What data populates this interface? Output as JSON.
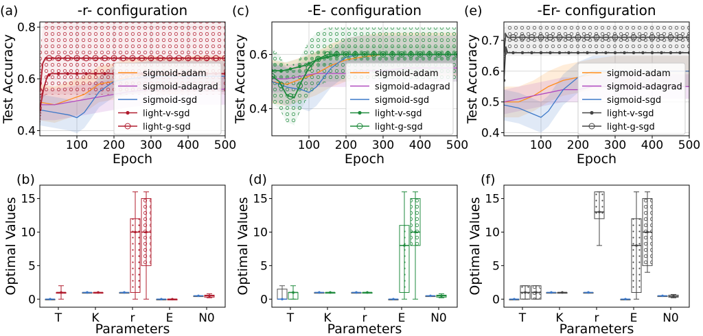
{
  "colors": {
    "sigmoid_adam": "#ff8c1a",
    "sigmoid_adagrad": "#b04ac0",
    "sigmoid_sgd": "#3c78c8",
    "r_config": "#b01c2e",
    "E_config": "#1e8a3c",
    "Er_config": "#444444",
    "grid": "#d9d9d9"
  },
  "legend_labels": [
    "sigmoid-adam",
    "sigmoid-adagrad",
    "sigmoid-sgd",
    "light-v-sgd",
    "light-g-sgd"
  ],
  "chart_data": [
    {
      "panel": "(a)",
      "type": "line",
      "title": "-r- configuration",
      "xlabel": "Epoch",
      "ylabel": "Test Accuracy",
      "xlim": [
        0,
        500
      ],
      "ylim": [
        0.38,
        0.82
      ],
      "xticks": [
        100,
        200,
        300,
        400,
        500
      ],
      "yticks": [
        0.4,
        0.6,
        0.8
      ],
      "ytick_labels": [
        "0.4",
        "0.6",
        "0.8"
      ],
      "legend": "right",
      "accent": "r_config",
      "series": [
        {
          "name": "sigmoid-adam",
          "color_key": "sigmoid_adam",
          "x": [
            0,
            40,
            80,
            120,
            160,
            200,
            240,
            300,
            360,
            420,
            500
          ],
          "y": [
            0.51,
            0.5,
            0.52,
            0.54,
            0.58,
            0.59,
            0.61,
            0.62,
            0.61,
            0.62,
            0.62
          ],
          "band": 0.07
        },
        {
          "name": "sigmoid-adagrad",
          "color_key": "sigmoid_adagrad",
          "x": [
            0,
            40,
            80,
            120,
            160,
            200,
            240,
            300,
            360,
            420,
            500
          ],
          "y": [
            0.5,
            0.5,
            0.51,
            0.52,
            0.53,
            0.54,
            0.55,
            0.56,
            0.56,
            0.56,
            0.56
          ],
          "band": 0.06
        },
        {
          "name": "sigmoid-sgd",
          "color_key": "sigmoid_sgd",
          "x": [
            0,
            40,
            80,
            100,
            120,
            160,
            200,
            240,
            300,
            360,
            420,
            500
          ],
          "y": [
            0.48,
            0.47,
            0.46,
            0.45,
            0.47,
            0.55,
            0.59,
            0.6,
            0.61,
            0.61,
            0.61,
            0.61
          ],
          "band": 0.06
        },
        {
          "name": "light-v-sgd",
          "color_key": "r_config",
          "marker": "dot",
          "x": [
            0,
            10,
            20,
            30,
            40,
            50,
            60,
            80,
            100,
            200,
            300,
            400,
            500
          ],
          "y": [
            0.48,
            0.56,
            0.61,
            0.62,
            0.62,
            0.62,
            0.62,
            0.62,
            0.62,
            0.62,
            0.62,
            0.62,
            0.62
          ],
          "band": 0.0
        },
        {
          "name": "light-g-sgd",
          "color_key": "r_config",
          "marker": "ring",
          "x": [
            0,
            8,
            15,
            25,
            40,
            60,
            100,
            200,
            300,
            400,
            500
          ],
          "y": [
            0.55,
            0.66,
            0.68,
            0.68,
            0.68,
            0.68,
            0.68,
            0.68,
            0.68,
            0.68,
            0.68
          ],
          "band": 0.14
        }
      ]
    },
    {
      "panel": "(c)",
      "type": "line",
      "title": "-E- configuration",
      "xlabel": "Epoch",
      "ylabel": "Test Accuracy",
      "xlim": [
        0,
        500
      ],
      "ylim": [
        0.3,
        0.72
      ],
      "xticks": [
        100,
        200,
        300,
        400,
        500
      ],
      "yticks": [
        0.4,
        0.6
      ],
      "ytick_labels": [
        "0.4",
        "0.6"
      ],
      "legend": "right",
      "accent": "E_config",
      "series": [
        {
          "name": "sigmoid-adam",
          "color_key": "sigmoid_adam",
          "x": [
            0,
            40,
            80,
            120,
            160,
            200,
            240,
            300,
            360,
            420,
            500
          ],
          "y": [
            0.5,
            0.49,
            0.51,
            0.53,
            0.56,
            0.58,
            0.59,
            0.6,
            0.6,
            0.6,
            0.6
          ],
          "band": 0.08
        },
        {
          "name": "sigmoid-adagrad",
          "color_key": "sigmoid_adagrad",
          "x": [
            0,
            40,
            80,
            120,
            160,
            200,
            240,
            300,
            360,
            420,
            500
          ],
          "y": [
            0.51,
            0.51,
            0.52,
            0.53,
            0.53,
            0.53,
            0.54,
            0.54,
            0.55,
            0.55,
            0.55
          ],
          "band": 0.05
        },
        {
          "name": "sigmoid-sgd",
          "color_key": "sigmoid_sgd",
          "x": [
            0,
            40,
            80,
            100,
            120,
            160,
            200,
            240,
            300,
            360,
            420,
            500
          ],
          "y": [
            0.5,
            0.48,
            0.47,
            0.46,
            0.48,
            0.55,
            0.59,
            0.6,
            0.6,
            0.6,
            0.6,
            0.6
          ],
          "band": 0.07
        },
        {
          "name": "light-v-sgd",
          "color_key": "E_config",
          "marker": "dot",
          "x": [
            0,
            30,
            60,
            90,
            120,
            150,
            180,
            200,
            250,
            300,
            350,
            400,
            450,
            500
          ],
          "y": [
            0.54,
            0.54,
            0.55,
            0.56,
            0.58,
            0.59,
            0.6,
            0.6,
            0.6,
            0.6,
            0.6,
            0.6,
            0.6,
            0.6
          ],
          "band": 0.03
        },
        {
          "name": "light-g-sgd",
          "color_key": "E_config",
          "marker": "ring",
          "x": [
            0,
            20,
            40,
            60,
            80,
            100,
            120,
            150,
            180,
            200,
            250,
            300,
            350,
            400,
            450,
            500
          ],
          "y": [
            0.52,
            0.5,
            0.45,
            0.44,
            0.5,
            0.55,
            0.58,
            0.6,
            0.6,
            0.6,
            0.6,
            0.6,
            0.6,
            0.6,
            0.6,
            0.6
          ],
          "band": 0.1
        }
      ]
    },
    {
      "panel": "(e)",
      "type": "line",
      "title": "-Er- configuration",
      "xlabel": "Epoch",
      "ylabel": "Test Accuracy",
      "xlim": [
        0,
        500
      ],
      "ylim": [
        0.39,
        0.76
      ],
      "xticks": [
        100,
        200,
        300,
        400,
        500
      ],
      "yticks": [
        0.4,
        0.5,
        0.6,
        0.7
      ],
      "ytick_labels": [
        "0.4",
        "0.5",
        "0.6",
        "0.7"
      ],
      "legend": "right",
      "accent": "Er_config",
      "series": [
        {
          "name": "sigmoid-adam",
          "color_key": "sigmoid_adam",
          "x": [
            0,
            40,
            80,
            120,
            160,
            200,
            240,
            300,
            360,
            420,
            500
          ],
          "y": [
            0.5,
            0.5,
            0.52,
            0.55,
            0.57,
            0.58,
            0.59,
            0.6,
            0.6,
            0.6,
            0.6
          ],
          "band": 0.05
        },
        {
          "name": "sigmoid-adagrad",
          "color_key": "sigmoid_adagrad",
          "x": [
            0,
            40,
            80,
            120,
            160,
            200,
            240,
            300,
            360,
            420,
            500
          ],
          "y": [
            0.5,
            0.51,
            0.52,
            0.53,
            0.54,
            0.54,
            0.55,
            0.55,
            0.55,
            0.55,
            0.55
          ],
          "band": 0.04
        },
        {
          "name": "sigmoid-sgd",
          "color_key": "sigmoid_sgd",
          "x": [
            0,
            40,
            80,
            100,
            120,
            160,
            200,
            240,
            300,
            360,
            420,
            500
          ],
          "y": [
            0.49,
            0.48,
            0.46,
            0.45,
            0.47,
            0.54,
            0.58,
            0.6,
            0.6,
            0.6,
            0.6,
            0.6
          ],
          "band": 0.05
        },
        {
          "name": "light-v-sgd",
          "color_key": "Er_config",
          "marker": "dot",
          "x": [
            0,
            5,
            10,
            20,
            40,
            60,
            100,
            200,
            300,
            400,
            500
          ],
          "y": [
            0.57,
            0.68,
            0.66,
            0.66,
            0.66,
            0.66,
            0.66,
            0.66,
            0.66,
            0.66,
            0.66
          ],
          "band": 0.01
        },
        {
          "name": "light-g-sgd",
          "color_key": "Er_config",
          "marker": "ring",
          "x": [
            0,
            5,
            10,
            20,
            40,
            60,
            100,
            200,
            300,
            400,
            500
          ],
          "y": [
            0.66,
            0.72,
            0.71,
            0.71,
            0.71,
            0.71,
            0.71,
            0.71,
            0.71,
            0.71,
            0.71
          ],
          "band": 0.04
        }
      ]
    },
    {
      "panel": "(b)",
      "type": "box",
      "xlabel": "Parameters",
      "ylabel": "Optimal Values",
      "ylim": [
        -1.2,
        17
      ],
      "yticks": [
        0,
        5,
        10,
        15
      ],
      "ytick_labels": [
        "0",
        "5",
        "10",
        "15"
      ],
      "categories": [
        "T",
        "K",
        "r",
        "E",
        "N0"
      ],
      "accent": "r_config",
      "boxes": [
        {
          "category": "T",
          "group": "v",
          "min": 0,
          "q1": 0,
          "median": 0,
          "q3": 0,
          "max": 0
        },
        {
          "category": "T",
          "group": "g",
          "min": 0,
          "q1": 1,
          "median": 1,
          "q3": 1,
          "max": 2
        },
        {
          "category": "K",
          "group": "v",
          "min": 1,
          "q1": 1,
          "median": 1,
          "q3": 1,
          "max": 1
        },
        {
          "category": "K",
          "group": "g",
          "min": 1,
          "q1": 1,
          "median": 1,
          "q3": 1,
          "max": 1
        },
        {
          "category": "r",
          "group": "v",
          "min": 1,
          "q1": 1,
          "median": 1,
          "q3": 1,
          "max": 1
        },
        {
          "category": "r",
          "group": "g",
          "min": 0,
          "q1": 1,
          "median": 10,
          "q3": 12,
          "max": 16
        },
        {
          "category": "r",
          "group": "g2",
          "min": 0,
          "q1": 5,
          "median": 10,
          "q3": 15,
          "max": 16
        },
        {
          "category": "E",
          "group": "v",
          "min": 0,
          "q1": 0,
          "median": 0,
          "q3": 0,
          "max": 0
        },
        {
          "category": "E",
          "group": "g",
          "min": 0,
          "q1": 0,
          "median": 0,
          "q3": 0,
          "max": 0
        },
        {
          "category": "N0",
          "group": "v",
          "min": 0.5,
          "q1": 0.5,
          "median": 0.5,
          "q3": 0.5,
          "max": 0.5
        },
        {
          "category": "N0",
          "group": "g",
          "min": 0.2,
          "q1": 0.3,
          "median": 0.5,
          "q3": 0.6,
          "max": 0.8
        }
      ]
    },
    {
      "panel": "(d)",
      "type": "box",
      "xlabel": "Parameters",
      "ylabel": "Optimal Values",
      "ylim": [
        -1.2,
        17
      ],
      "yticks": [
        0,
        5,
        10,
        15
      ],
      "ytick_labels": [
        "0",
        "5",
        "10",
        "15"
      ],
      "categories": [
        "T",
        "K",
        "r",
        "E",
        "N0"
      ],
      "accent": "E_config",
      "boxes": [
        {
          "category": "T",
          "group": "v",
          "min": 0,
          "q1": 0,
          "median": 0,
          "q3": 1.5,
          "max": 2
        },
        {
          "category": "T",
          "group": "g",
          "min": 0,
          "q1": 0,
          "median": 1,
          "q3": 1,
          "max": 2
        },
        {
          "category": "K",
          "group": "v",
          "min": 1,
          "q1": 1,
          "median": 1,
          "q3": 1,
          "max": 1
        },
        {
          "category": "K",
          "group": "g",
          "min": 1,
          "q1": 1,
          "median": 1,
          "q3": 1,
          "max": 1
        },
        {
          "category": "r",
          "group": "v",
          "min": 1,
          "q1": 1,
          "median": 1,
          "q3": 1,
          "max": 1
        },
        {
          "category": "r",
          "group": "g",
          "min": 1,
          "q1": 1,
          "median": 1,
          "q3": 1,
          "max": 1
        },
        {
          "category": "E",
          "group": "v",
          "min": 0,
          "q1": 0,
          "median": 0,
          "q3": 0,
          "max": 0
        },
        {
          "category": "E",
          "group": "g",
          "min": 0,
          "q1": 1,
          "median": 8,
          "q3": 11,
          "max": 16
        },
        {
          "category": "E",
          "group": "g2",
          "min": 0,
          "q1": 8,
          "median": 10,
          "q3": 15,
          "max": 16
        },
        {
          "category": "N0",
          "group": "v",
          "min": 0.5,
          "q1": 0.5,
          "median": 0.5,
          "q3": 0.5,
          "max": 0.5
        },
        {
          "category": "N0",
          "group": "g",
          "min": 0.2,
          "q1": 0.3,
          "median": 0.5,
          "q3": 0.6,
          "max": 0.8
        }
      ]
    },
    {
      "panel": "(f)",
      "type": "box",
      "xlabel": "Parameters",
      "ylabel": "Optimal Values",
      "ylim": [
        -1.2,
        17
      ],
      "yticks": [
        0,
        5,
        10,
        15
      ],
      "ytick_labels": [
        "0",
        "5",
        "10",
        "15"
      ],
      "categories": [
        "T",
        "K",
        "r",
        "E",
        "N0"
      ],
      "accent": "Er_config",
      "boxes": [
        {
          "category": "T",
          "group": "v",
          "min": 0,
          "q1": 0,
          "median": 0,
          "q3": 0,
          "max": 0
        },
        {
          "category": "T",
          "group": "g",
          "min": 0,
          "q1": 0,
          "median": 1,
          "q3": 2,
          "max": 2
        },
        {
          "category": "T",
          "group": "g2",
          "min": 0,
          "q1": 0,
          "median": 1,
          "q3": 2,
          "max": 2
        },
        {
          "category": "K",
          "group": "v",
          "min": 1,
          "q1": 1,
          "median": 1,
          "q3": 1,
          "max": 1
        },
        {
          "category": "K",
          "group": "g",
          "min": 1,
          "q1": 1,
          "median": 1,
          "q3": 1,
          "max": 1
        },
        {
          "category": "r",
          "group": "v",
          "min": 1,
          "q1": 1,
          "median": 1,
          "q3": 1,
          "max": 1
        },
        {
          "category": "r",
          "group": "g",
          "min": 8,
          "q1": 12,
          "median": 13,
          "q3": 16,
          "max": 16
        },
        {
          "category": "E",
          "group": "v",
          "min": 0,
          "q1": 0,
          "median": 0,
          "q3": 0,
          "max": 0
        },
        {
          "category": "E",
          "group": "g",
          "min": 0,
          "q1": 1,
          "median": 8,
          "q3": 12,
          "max": 16
        },
        {
          "category": "E",
          "group": "g2",
          "min": 4,
          "q1": 5,
          "median": 10,
          "q3": 15,
          "max": 16
        },
        {
          "category": "N0",
          "group": "v",
          "min": 0.5,
          "q1": 0.5,
          "median": 0.5,
          "q3": 0.5,
          "max": 0.5
        },
        {
          "category": "N0",
          "group": "g",
          "min": 0.2,
          "q1": 0.3,
          "median": 0.4,
          "q3": 0.6,
          "max": 0.7
        }
      ]
    }
  ]
}
